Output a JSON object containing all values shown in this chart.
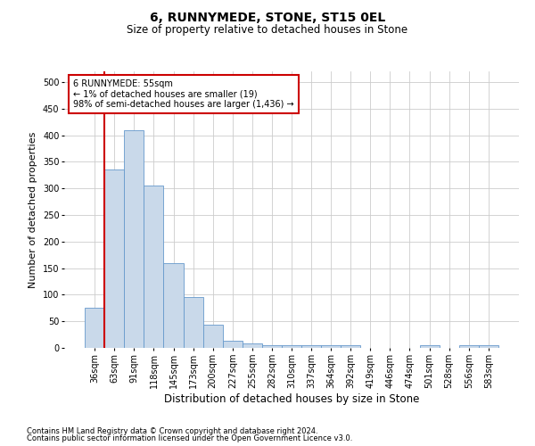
{
  "title": "6, RUNNYMEDE, STONE, ST15 0EL",
  "subtitle": "Size of property relative to detached houses in Stone",
  "xlabel": "Distribution of detached houses by size in Stone",
  "ylabel": "Number of detached properties",
  "footer_line1": "Contains HM Land Registry data © Crown copyright and database right 2024.",
  "footer_line2": "Contains public sector information licensed under the Open Government Licence v3.0.",
  "categories": [
    "36sqm",
    "63sqm",
    "91sqm",
    "118sqm",
    "145sqm",
    "173sqm",
    "200sqm",
    "227sqm",
    "255sqm",
    "282sqm",
    "310sqm",
    "337sqm",
    "364sqm",
    "392sqm",
    "419sqm",
    "446sqm",
    "474sqm",
    "501sqm",
    "528sqm",
    "556sqm",
    "583sqm"
  ],
  "values": [
    75,
    335,
    410,
    305,
    160,
    95,
    43,
    13,
    8,
    5,
    5,
    5,
    5,
    5,
    0,
    0,
    0,
    5,
    0,
    5,
    5
  ],
  "bar_color": "#c9d9ea",
  "bar_edge_color": "#6699cc",
  "annotation_box_color": "#cc0000",
  "annotation_line1": "6 RUNNYMEDE: 55sqm",
  "annotation_line2": "← 1% of detached houses are smaller (19)",
  "annotation_line3": "98% of semi-detached houses are larger (1,436) →",
  "property_line_color": "#cc0000",
  "ylim": [
    0,
    520
  ],
  "yticks": [
    0,
    50,
    100,
    150,
    200,
    250,
    300,
    350,
    400,
    450,
    500
  ],
  "bg_color": "#ffffff",
  "grid_color": "#cccccc",
  "title_fontsize": 10,
  "subtitle_fontsize": 8.5,
  "ylabel_fontsize": 8,
  "xlabel_fontsize": 8.5,
  "tick_fontsize": 7,
  "footer_fontsize": 6
}
